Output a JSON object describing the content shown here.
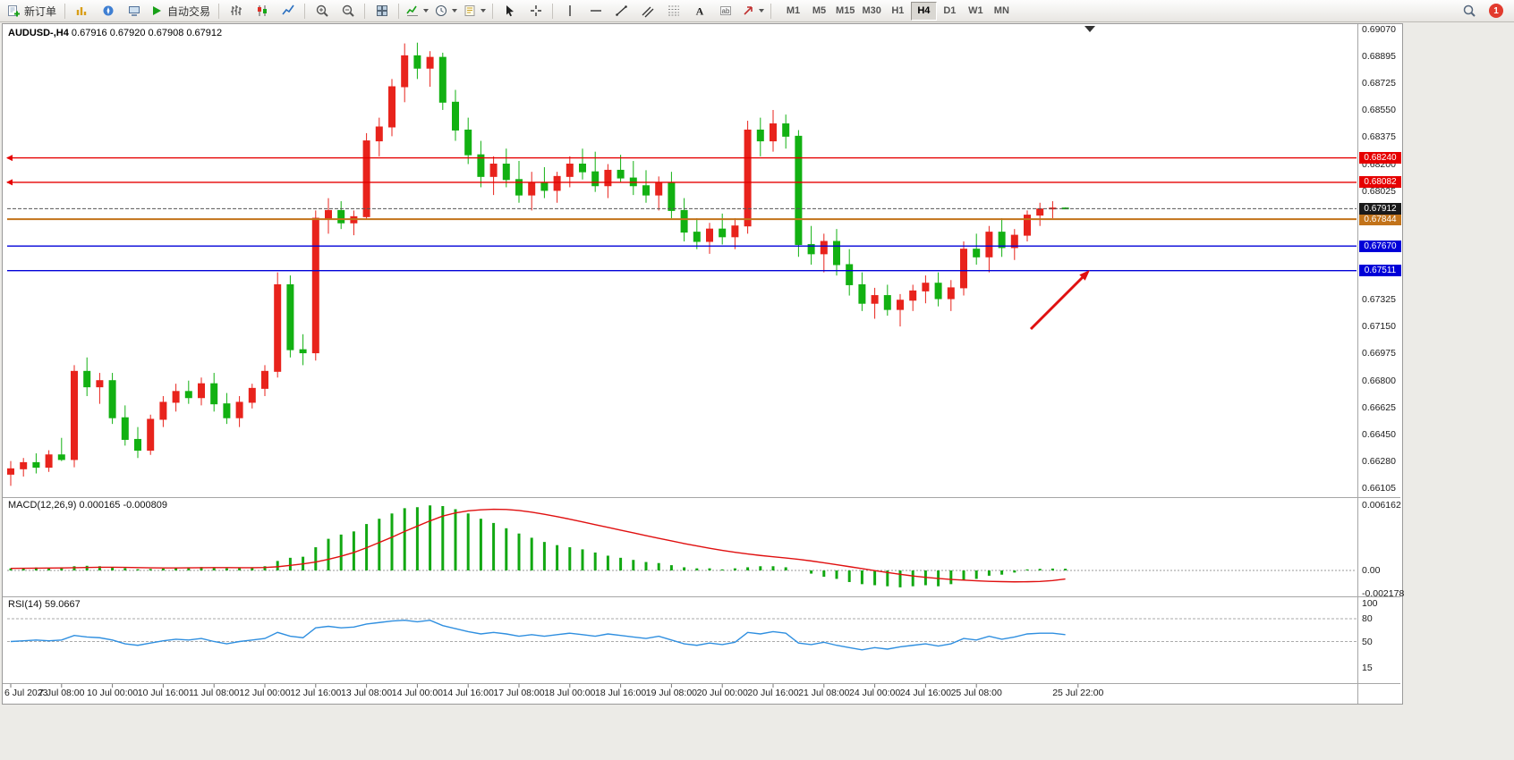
{
  "window": {
    "symbol_period": "AUDUSD-,H4",
    "ohlc": "0.67916 0.67920 0.67908 0.67912"
  },
  "toolbar": {
    "notification_count": "1",
    "timeframes": {
      "labels": [
        "M1",
        "M5",
        "M15",
        "M30",
        "H1",
        "H4",
        "D1",
        "W1",
        "MN"
      ],
      "active": "H4"
    },
    "groups": [
      {
        "items": [
          {
            "name": "new-order-button",
            "icon": "new-order-icon",
            "label": "新订单"
          }
        ]
      },
      {
        "items": [
          {
            "name": "market-watch-button",
            "icon": "market-watch-icon"
          },
          {
            "name": "navigator-button",
            "icon": "navigator-icon"
          },
          {
            "name": "terminal-button",
            "icon": "terminal-icon"
          },
          {
            "name": "autotrading-button",
            "icon": "autotrading-icon",
            "label": "自动交易"
          }
        ]
      },
      {
        "items": [
          {
            "name": "bar-chart-button",
            "icon": "bar-chart-icon"
          },
          {
            "name": "candlestick-chart-button",
            "icon": "candlestick-icon"
          },
          {
            "name": "line-chart-button",
            "icon": "line-chart-icon"
          }
        ]
      },
      {
        "items": [
          {
            "name": "zoom-in-button",
            "icon": "zoom-in-icon"
          },
          {
            "name": "zoom-out-button",
            "icon": "zoom-out-icon"
          }
        ]
      },
      {
        "items": [
          {
            "name": "tile-windows-button",
            "icon": "tile-windows-icon"
          }
        ]
      },
      {
        "items": [
          {
            "name": "indicators-button",
            "icon": "indicators-icon",
            "dropdown": true
          },
          {
            "name": "periods-button",
            "icon": "clock-icon",
            "dropdown": true
          },
          {
            "name": "templates-button",
            "icon": "template-icon",
            "dropdown": true
          }
        ]
      },
      {
        "items": [
          {
            "name": "cursor-button",
            "icon": "cursor-icon"
          },
          {
            "name": "crosshair-button",
            "icon": "crosshair-icon"
          }
        ]
      },
      {
        "items": [
          {
            "name": "vertical-line-button",
            "icon": "vertical-line-icon"
          },
          {
            "name": "horizontal-line-button",
            "icon": "horizontal-line-icon"
          },
          {
            "name": "trendline-button",
            "icon": "trendline-icon"
          },
          {
            "name": "channel-button",
            "icon": "channel-icon"
          },
          {
            "name": "fibonacci-button",
            "icon": "fibonacci-icon"
          },
          {
            "name": "text-button",
            "icon": "text-icon"
          },
          {
            "name": "text-label-button",
            "icon": "text-label-icon"
          },
          {
            "name": "arrow-styles-button",
            "icon": "arrow-styles-icon",
            "dropdown": true
          }
        ]
      }
    ]
  },
  "chart_data": {
    "type": "candlestick",
    "symbol": "AUDUSD-",
    "period": "H4",
    "ohlc_current": {
      "open": "0.67916",
      "high": "0.67920",
      "low": "0.67908",
      "close": "0.67912"
    },
    "colors": {
      "up": "#e8231c",
      "down": "#12b112"
    },
    "candles": [
      [
        0.66195,
        0.6628,
        0.6612,
        0.6623
      ],
      [
        0.6623,
        0.663,
        0.6618,
        0.6627
      ],
      [
        0.6627,
        0.6633,
        0.662,
        0.6624
      ],
      [
        0.6624,
        0.6635,
        0.6621,
        0.6632
      ],
      [
        0.6632,
        0.6643,
        0.6628,
        0.6629
      ],
      [
        0.6629,
        0.669,
        0.6624,
        0.6686
      ],
      [
        0.6686,
        0.6695,
        0.667,
        0.6676
      ],
      [
        0.6676,
        0.6685,
        0.6665,
        0.668
      ],
      [
        0.668,
        0.6685,
        0.6652,
        0.6656
      ],
      [
        0.6656,
        0.6664,
        0.6638,
        0.6642
      ],
      [
        0.6642,
        0.665,
        0.663,
        0.6635
      ],
      [
        0.6635,
        0.6658,
        0.6632,
        0.6655
      ],
      [
        0.6655,
        0.667,
        0.665,
        0.6666
      ],
      [
        0.6666,
        0.6678,
        0.666,
        0.6673
      ],
      [
        0.6673,
        0.668,
        0.6665,
        0.6669
      ],
      [
        0.6669,
        0.6682,
        0.6664,
        0.6678
      ],
      [
        0.6678,
        0.6685,
        0.666,
        0.6665
      ],
      [
        0.6665,
        0.6672,
        0.6652,
        0.6656
      ],
      [
        0.6656,
        0.667,
        0.665,
        0.6666
      ],
      [
        0.6666,
        0.6678,
        0.6662,
        0.6675
      ],
      [
        0.6675,
        0.669,
        0.667,
        0.6686
      ],
      [
        0.6686,
        0.675,
        0.6682,
        0.6742
      ],
      [
        0.6742,
        0.6748,
        0.6695,
        0.67
      ],
      [
        0.67,
        0.671,
        0.669,
        0.6698
      ],
      [
        0.6698,
        0.679,
        0.6693,
        0.6785
      ],
      [
        0.6785,
        0.6798,
        0.6775,
        0.679
      ],
      [
        0.679,
        0.6796,
        0.6778,
        0.6782
      ],
      [
        0.6782,
        0.679,
        0.6774,
        0.6786
      ],
      [
        0.6786,
        0.684,
        0.6784,
        0.6835
      ],
      [
        0.6835,
        0.685,
        0.6825,
        0.6844
      ],
      [
        0.6844,
        0.6875,
        0.6838,
        0.687
      ],
      [
        0.687,
        0.6898,
        0.686,
        0.689
      ],
      [
        0.689,
        0.68985,
        0.6875,
        0.6882
      ],
      [
        0.6882,
        0.6893,
        0.687,
        0.6889
      ],
      [
        0.6889,
        0.6892,
        0.6855,
        0.686
      ],
      [
        0.686,
        0.6868,
        0.6835,
        0.6842
      ],
      [
        0.6842,
        0.685,
        0.682,
        0.6826
      ],
      [
        0.6826,
        0.6835,
        0.6805,
        0.6812
      ],
      [
        0.6812,
        0.6825,
        0.68,
        0.682
      ],
      [
        0.682,
        0.683,
        0.6805,
        0.681
      ],
      [
        0.681,
        0.6822,
        0.6795,
        0.68
      ],
      [
        0.68,
        0.6815,
        0.679,
        0.6808
      ],
      [
        0.6808,
        0.6818,
        0.6798,
        0.6803
      ],
      [
        0.6803,
        0.6815,
        0.6795,
        0.6812
      ],
      [
        0.6812,
        0.6825,
        0.6805,
        0.682
      ],
      [
        0.682,
        0.683,
        0.681,
        0.6815
      ],
      [
        0.6815,
        0.6828,
        0.6802,
        0.6806
      ],
      [
        0.6806,
        0.682,
        0.6798,
        0.6816
      ],
      [
        0.6816,
        0.6826,
        0.6808,
        0.6811
      ],
      [
        0.6811,
        0.6822,
        0.68,
        0.6806
      ],
      [
        0.6806,
        0.6816,
        0.6795,
        0.68
      ],
      [
        0.68,
        0.6812,
        0.679,
        0.6808
      ],
      [
        0.6808,
        0.6815,
        0.6785,
        0.679
      ],
      [
        0.679,
        0.6798,
        0.677,
        0.6776
      ],
      [
        0.6776,
        0.6785,
        0.6765,
        0.677
      ],
      [
        0.677,
        0.6782,
        0.6762,
        0.6778
      ],
      [
        0.6778,
        0.6788,
        0.6768,
        0.6773
      ],
      [
        0.6773,
        0.6785,
        0.6765,
        0.678
      ],
      [
        0.678,
        0.6848,
        0.6775,
        0.6842
      ],
      [
        0.6842,
        0.685,
        0.6825,
        0.6835
      ],
      [
        0.6835,
        0.6855,
        0.6828,
        0.6846
      ],
      [
        0.6846,
        0.6852,
        0.683,
        0.6838
      ],
      [
        0.6838,
        0.6842,
        0.676,
        0.6768
      ],
      [
        0.6768,
        0.678,
        0.6755,
        0.6762
      ],
      [
        0.6762,
        0.6775,
        0.675,
        0.677
      ],
      [
        0.677,
        0.6778,
        0.6748,
        0.6755
      ],
      [
        0.6755,
        0.6765,
        0.6735,
        0.6742
      ],
      [
        0.6742,
        0.675,
        0.6725,
        0.673
      ],
      [
        0.673,
        0.674,
        0.672,
        0.6735
      ],
      [
        0.6735,
        0.6742,
        0.6722,
        0.6726
      ],
      [
        0.6726,
        0.6736,
        0.6715,
        0.6732
      ],
      [
        0.6732,
        0.6742,
        0.6725,
        0.6738
      ],
      [
        0.6738,
        0.6748,
        0.673,
        0.6743
      ],
      [
        0.6743,
        0.675,
        0.6728,
        0.6733
      ],
      [
        0.6733,
        0.6745,
        0.6725,
        0.674
      ],
      [
        0.674,
        0.677,
        0.6735,
        0.6765
      ],
      [
        0.6765,
        0.6775,
        0.6755,
        0.676
      ],
      [
        0.676,
        0.678,
        0.675,
        0.6776
      ],
      [
        0.6776,
        0.6785,
        0.676,
        0.6766
      ],
      [
        0.6766,
        0.6778,
        0.6758,
        0.6774
      ],
      [
        0.6774,
        0.679,
        0.677,
        0.6787
      ],
      [
        0.6787,
        0.6795,
        0.678,
        0.6791
      ],
      [
        0.6791,
        0.6796,
        0.6785,
        0.67916
      ],
      [
        0.67916,
        0.6792,
        0.67908,
        0.67912
      ]
    ],
    "time_labels": [
      "6 Jul 2023",
      "7 Jul 08:00",
      "10 Jul 00:00",
      "10 Jul 16:00",
      "11 Jul 08:00",
      "12 Jul 00:00",
      "12 Jul 16:00",
      "13 Jul 08:00",
      "14 Jul 00:00",
      "14 Jul 16:00",
      "17 Jul 08:00",
      "18 Jul 00:00",
      "18 Jul 16:00",
      "19 Jul 08:00",
      "20 Jul 00:00",
      "20 Jul 16:00",
      "21 Jul 08:00",
      "24 Jul 00:00",
      "24 Jul 16:00",
      "25 Jul 08:00",
      "25 Jul 22:00"
    ],
    "price_scale_labels": [
      "0.69070",
      "0.68895",
      "0.68725",
      "0.68550",
      "0.68375",
      "0.68200",
      "0.68025",
      "0.67850",
      "0.67675",
      "0.67500",
      "0.67325",
      "0.67150",
      "0.66975",
      "0.66800",
      "0.66625",
      "0.66450",
      "0.66280",
      "0.66105"
    ],
    "levels": [
      {
        "price": 0.6824,
        "label": "0.68240",
        "color": "#e60000",
        "width": 1.4,
        "marker": true
      },
      {
        "price": 0.68082,
        "label": "0.68082",
        "color": "#e60000",
        "width": 1.4,
        "marker": true
      },
      {
        "price": 0.67844,
        "label": "0.67844",
        "color": "#c2731a",
        "width": 2
      },
      {
        "price": 0.6767,
        "label": "0.67670",
        "color": "#0000d8",
        "width": 1.4
      },
      {
        "price": 0.67511,
        "label": "0.67511",
        "color": "#0000d8",
        "width": 1.4
      }
    ],
    "current_price": {
      "price": 0.67912,
      "label": "0.67912",
      "color": "#1a1a1a"
    },
    "macd": {
      "name": "MACD(12,26,9)",
      "value": "0.000165",
      "signal_value": "-0.000809",
      "scale_labels": [
        "0.006162",
        "0.00",
        "-0.002178"
      ],
      "histogram_color": "#12a812",
      "signal_color": "#e01010",
      "histogram": [
        0.0002,
        0.00024,
        0.00028,
        0.00026,
        0.0003,
        0.0004,
        0.00044,
        0.0004,
        0.00034,
        0.00022,
        0.00012,
        0.00014,
        0.00018,
        0.00024,
        0.0003,
        0.00032,
        0.00028,
        0.0002,
        0.00022,
        0.00028,
        0.0004,
        0.0009,
        0.0012,
        0.0013,
        0.0022,
        0.003,
        0.0034,
        0.0037,
        0.0044,
        0.0049,
        0.0054,
        0.0059,
        0.006,
        0.00616,
        0.0061,
        0.0058,
        0.0054,
        0.0049,
        0.0045,
        0.004,
        0.0035,
        0.0031,
        0.0027,
        0.0024,
        0.0022,
        0.002,
        0.0017,
        0.0014,
        0.0012,
        0.001,
        0.0008,
        0.0007,
        0.0005,
        0.0003,
        0.0002,
        0.0002,
        0.0001,
        0.0002,
        0.0003,
        0.0004,
        0.0004,
        0.0003,
        0.0,
        -0.0003,
        -0.0006,
        -0.0008,
        -0.0011,
        -0.0013,
        -0.0014,
        -0.0015,
        -0.0016,
        -0.0015,
        -0.0014,
        -0.0015,
        -0.0013,
        -0.0009,
        -0.0008,
        -0.0005,
        -0.0004,
        -0.0002,
        0.0001,
        0.00015,
        0.00018,
        0.000165
      ],
      "signal": [
        0.0002,
        0.00021,
        0.00022,
        0.00023,
        0.00024,
        0.00026,
        0.00028,
        0.0003,
        0.0003,
        0.00029,
        0.00027,
        0.00025,
        0.00024,
        0.00024,
        0.00025,
        0.00026,
        0.00027,
        0.00027,
        0.00026,
        0.00026,
        0.00028,
        0.00035,
        0.00048,
        0.00062,
        0.0008,
        0.00105,
        0.00135,
        0.0017,
        0.00215,
        0.00265,
        0.00315,
        0.0037,
        0.0042,
        0.0047,
        0.00515,
        0.00545,
        0.00565,
        0.00575,
        0.0058,
        0.00578,
        0.00568,
        0.00552,
        0.00532,
        0.0051,
        0.00486,
        0.0046,
        0.00434,
        0.00408,
        0.00382,
        0.00356,
        0.0033,
        0.00305,
        0.0028,
        0.00255,
        0.00232,
        0.0021,
        0.0019,
        0.00172,
        0.00156,
        0.00142,
        0.0013,
        0.00118,
        0.00105,
        0.0009,
        0.00073,
        0.00055,
        0.00036,
        0.00017,
        -2e-05,
        -0.0002,
        -0.00037,
        -0.00052,
        -0.00065,
        -0.00076,
        -0.00085,
        -0.00092,
        -0.00098,
        -0.00103,
        -0.00106,
        -0.00108,
        -0.00107,
        -0.00104,
        -0.00096,
        -0.000809
      ]
    },
    "rsi": {
      "name": "RSI(14)",
      "value": "59.0667",
      "scale_labels": [
        "100",
        "80",
        "50",
        "15"
      ],
      "levels": [
        80,
        50
      ],
      "line_color": "#2f8fe0",
      "values": [
        50,
        51,
        52,
        51,
        52,
        58,
        56,
        55,
        52,
        47,
        45,
        48,
        51,
        53,
        52,
        54,
        50,
        47,
        50,
        52,
        54,
        62,
        57,
        55,
        68,
        70,
        68,
        69,
        73,
        75,
        77,
        78,
        76,
        78,
        71,
        67,
        63,
        60,
        62,
        60,
        57,
        59,
        57,
        59,
        61,
        59,
        57,
        60,
        58,
        56,
        54,
        57,
        52,
        47,
        45,
        48,
        46,
        49,
        62,
        60,
        63,
        61,
        48,
        46,
        49,
        45,
        42,
        39,
        42,
        40,
        43,
        45,
        47,
        44,
        47,
        54,
        52,
        57,
        53,
        56,
        60,
        61,
        61,
        59.07
      ]
    },
    "annotation_arrow": {
      "color": "#e01010",
      "from": [
        1152,
        368
      ],
      "to": [
        1218,
        302
      ],
      "direction": "up-right"
    }
  }
}
